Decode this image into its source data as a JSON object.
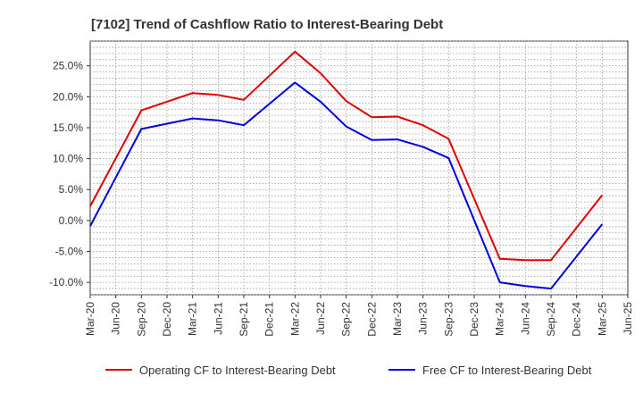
{
  "chart_data": {
    "type": "line",
    "title": "[7102]  Trend of Cashflow Ratio to Interest-Bearing Debt",
    "xlabel": "",
    "ylabel": "",
    "categories": [
      "Mar-20",
      "Jun-20",
      "Sep-20",
      "Dec-20",
      "Mar-21",
      "Jun-21",
      "Sep-21",
      "Dec-21",
      "Mar-22",
      "Jun-22",
      "Sep-22",
      "Dec-22",
      "Mar-23",
      "Jun-23",
      "Sep-23",
      "Dec-23",
      "Mar-24",
      "Jun-24",
      "Sep-24",
      "Dec-24",
      "Mar-25",
      "Jun-25"
    ],
    "ylim": [
      -12,
      29
    ],
    "yticks": [
      -10,
      -5,
      0,
      5,
      10,
      15,
      20,
      25
    ],
    "ytick_labels": [
      "-10.0%",
      "-5.0%",
      "0.0%",
      "5.0%",
      "10.0%",
      "15.0%",
      "20.0%",
      "25.0%"
    ],
    "grid": true,
    "legend_position": "bottom",
    "series": [
      {
        "name": "Operating CF to Interest-Bearing Debt",
        "color": "#e00000",
        "values": [
          2.3,
          null,
          17.8,
          null,
          20.6,
          20.3,
          19.5,
          null,
          27.3,
          23.8,
          19.3,
          16.7,
          16.8,
          15.4,
          13.2,
          null,
          -6.2,
          -6.4,
          -6.4,
          null,
          4.1,
          null
        ]
      },
      {
        "name": "Free CF to Interest-Bearing Debt",
        "color": "#0000e0",
        "values": [
          -0.9,
          null,
          14.8,
          null,
          16.5,
          16.2,
          15.4,
          null,
          22.3,
          19.2,
          15.2,
          13.0,
          13.1,
          11.9,
          10.1,
          null,
          -10.0,
          -10.6,
          -11.0,
          null,
          -0.6,
          null
        ]
      }
    ]
  }
}
